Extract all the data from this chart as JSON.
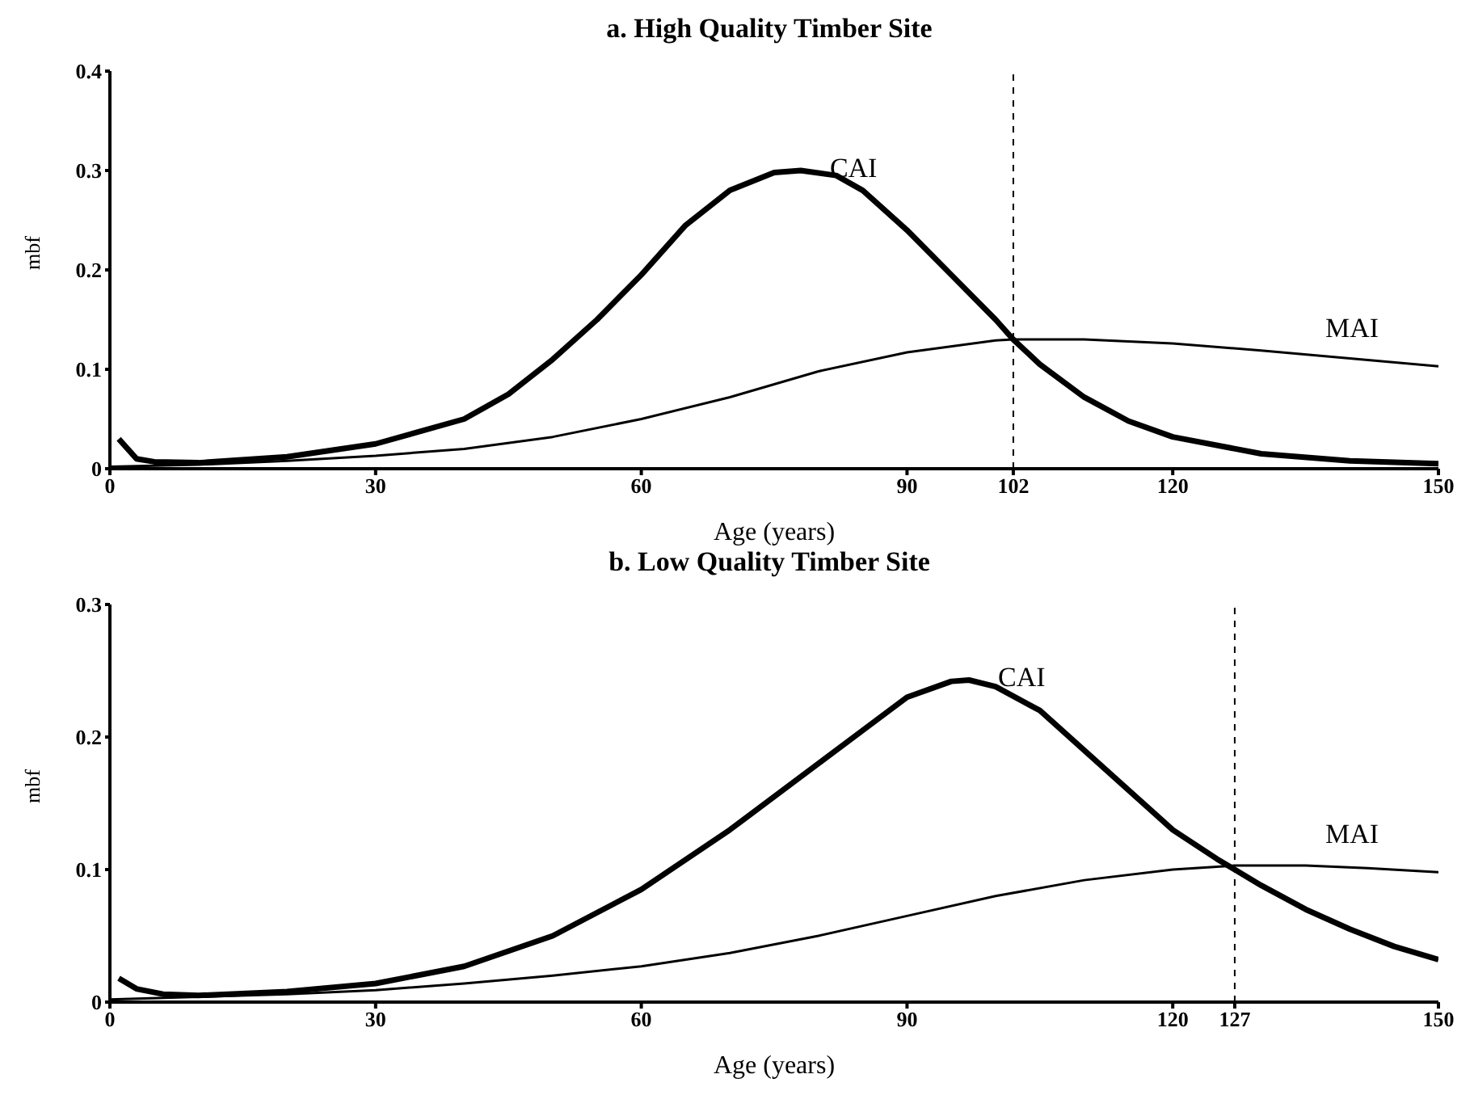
{
  "chart_data": [
    {
      "type": "line",
      "title": "a. High Quality Timber Site",
      "xlabel": "Age (years)",
      "ylabel": "mbf",
      "xlim": [
        0,
        150
      ],
      "xticks": [
        0,
        30,
        60,
        90,
        102,
        120,
        150
      ],
      "ylim": [
        0,
        0.4
      ],
      "yticks": [
        0,
        0.1,
        0.2,
        0.3,
        0.4
      ],
      "grid": false,
      "legend": false,
      "marker": "none",
      "line_style": "solid",
      "series": [
        {
          "name": "CAI",
          "color": "#000000",
          "x": [
            1,
            3,
            5,
            10,
            20,
            30,
            40,
            45,
            50,
            55,
            60,
            65,
            70,
            75,
            78,
            82,
            85,
            90,
            95,
            100,
            102,
            105,
            110,
            115,
            120,
            130,
            140,
            150
          ],
          "values": [
            0.03,
            0.01,
            0.007,
            0.006,
            0.012,
            0.025,
            0.05,
            0.075,
            0.11,
            0.15,
            0.195,
            0.245,
            0.28,
            0.298,
            0.3,
            0.295,
            0.28,
            0.24,
            0.195,
            0.15,
            0.13,
            0.105,
            0.072,
            0.048,
            0.032,
            0.015,
            0.008,
            0.005
          ]
        },
        {
          "name": "MAI",
          "color": "#000000",
          "x": [
            0,
            10,
            20,
            30,
            40,
            50,
            60,
            70,
            80,
            90,
            100,
            102,
            110,
            120,
            130,
            140,
            150
          ],
          "values": [
            0.002,
            0.004,
            0.008,
            0.013,
            0.02,
            0.032,
            0.05,
            0.072,
            0.098,
            0.117,
            0.129,
            0.13,
            0.13,
            0.126,
            0.119,
            0.111,
            0.103
          ]
        }
      ],
      "ref_lines": [
        {
          "axis": "x",
          "value": 102,
          "color": "#000000",
          "line_style": "dashed"
        }
      ]
    },
    {
      "type": "line",
      "title": "b. Low  Quality Timber Site",
      "xlabel": "Age (years)",
      "ylabel": "mbf",
      "xlim": [
        0,
        150
      ],
      "xticks": [
        0,
        30,
        60,
        90,
        120,
        127,
        150
      ],
      "ylim": [
        0,
        0.3
      ],
      "yticks": [
        0,
        0.1,
        0.2,
        0.3
      ],
      "grid": false,
      "legend": false,
      "marker": "none",
      "line_style": "solid",
      "series": [
        {
          "name": "CAI",
          "color": "#000000",
          "x": [
            1,
            3,
            6,
            10,
            20,
            30,
            40,
            50,
            60,
            70,
            80,
            85,
            90,
            95,
            97,
            100,
            105,
            110,
            115,
            120,
            125,
            127,
            130,
            135,
            140,
            145,
            150
          ],
          "values": [
            0.018,
            0.01,
            0.006,
            0.005,
            0.008,
            0.014,
            0.027,
            0.05,
            0.085,
            0.13,
            0.18,
            0.205,
            0.23,
            0.242,
            0.243,
            0.238,
            0.22,
            0.19,
            0.16,
            0.13,
            0.108,
            0.1,
            0.088,
            0.07,
            0.055,
            0.042,
            0.032
          ]
        },
        {
          "name": "MAI",
          "color": "#000000",
          "x": [
            0,
            10,
            20,
            30,
            40,
            50,
            60,
            70,
            80,
            90,
            100,
            110,
            120,
            127,
            135,
            142,
            150
          ],
          "values": [
            0.002,
            0.004,
            0.006,
            0.009,
            0.014,
            0.02,
            0.027,
            0.037,
            0.05,
            0.065,
            0.08,
            0.092,
            0.1,
            0.103,
            0.103,
            0.101,
            0.098
          ]
        }
      ],
      "ref_lines": [
        {
          "axis": "x",
          "value": 127,
          "color": "#000000",
          "line_style": "dashed"
        }
      ]
    }
  ]
}
